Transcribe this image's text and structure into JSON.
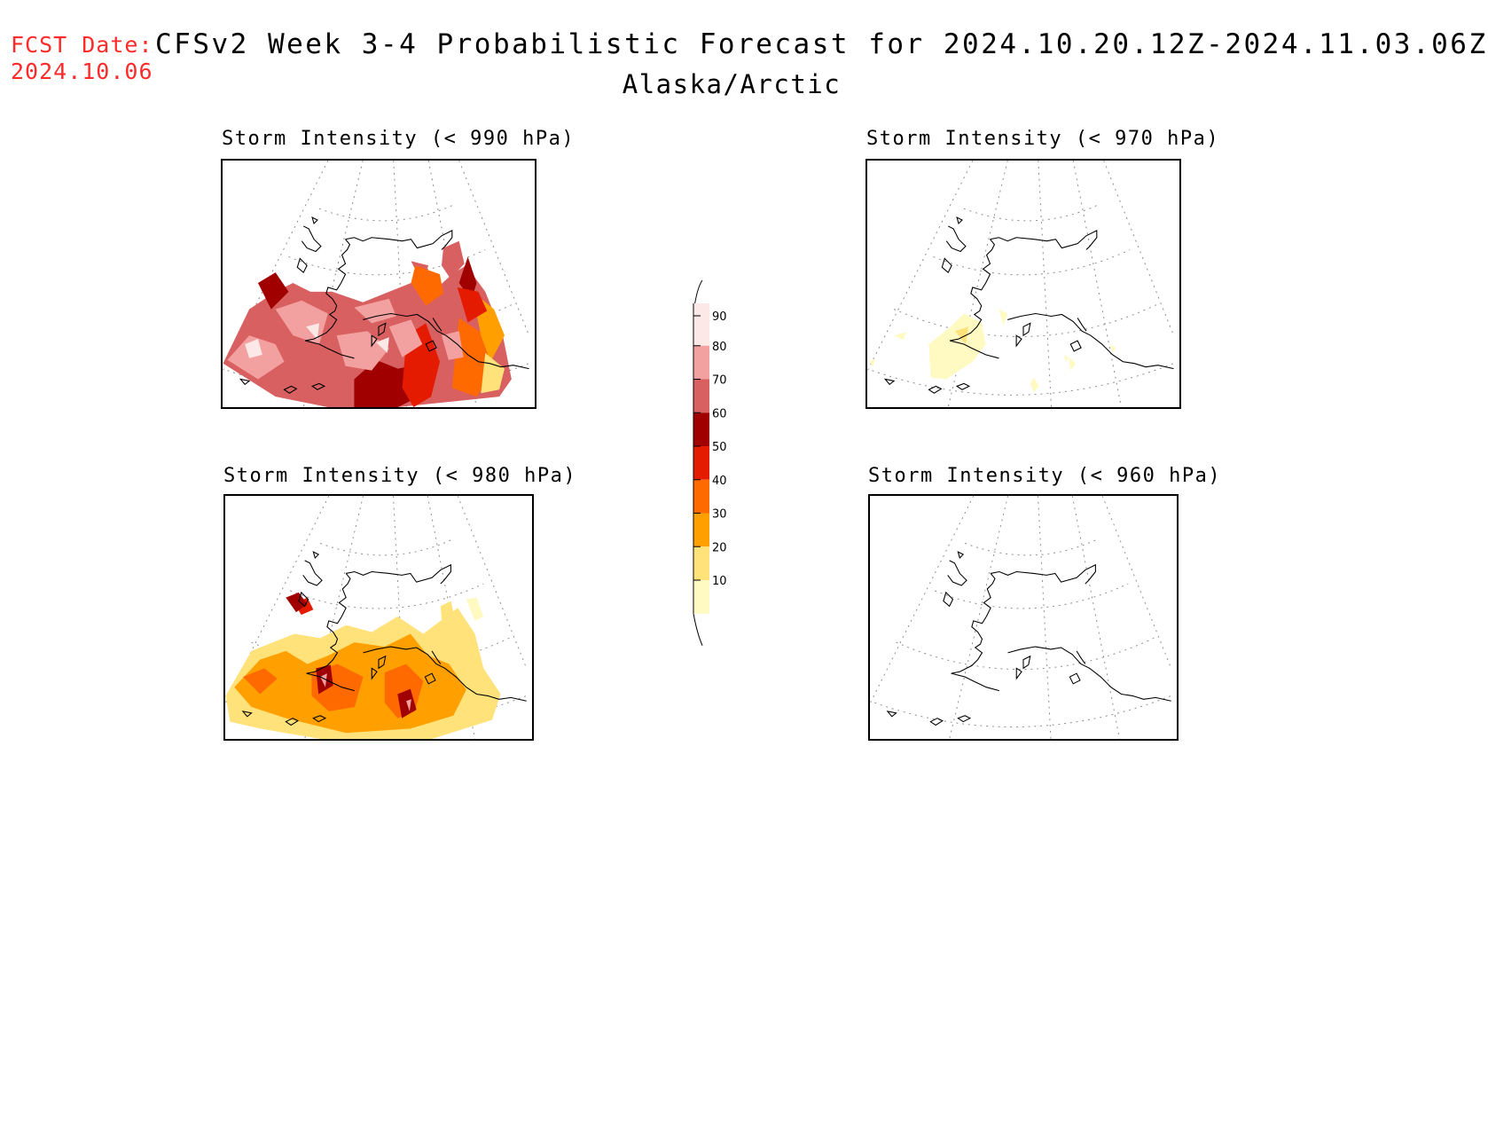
{
  "header": {
    "fcst_label": "FCST Date:",
    "fcst_date": "2024.10.06",
    "title": "CFSv2 Week 3-4 Probabilistic Forecast for 2024.10.20.12Z-2024.11.03.06Z",
    "region": "Alaska/Arctic"
  },
  "panels": [
    {
      "id": "p990",
      "title": "Storm Intensity (< 990 hPa)"
    },
    {
      "id": "p980",
      "title": "Storm Intensity (< 980 hPa)"
    },
    {
      "id": "p970",
      "title": "Storm Intensity (< 970 hPa)"
    },
    {
      "id": "p960",
      "title": "Storm Intensity (< 960 hPa)"
    }
  ],
  "colorbar": {
    "levels": [
      "10",
      "20",
      "30",
      "40",
      "50",
      "60",
      "70",
      "80",
      "90"
    ],
    "colors": [
      "#ffffff",
      "#fff9c2",
      "#ffe27a",
      "#ffa000",
      "#ff6a00",
      "#e51b00",
      "#a00000",
      "#d86060",
      "#f2a0a0",
      "#fde8e8"
    ]
  }
}
